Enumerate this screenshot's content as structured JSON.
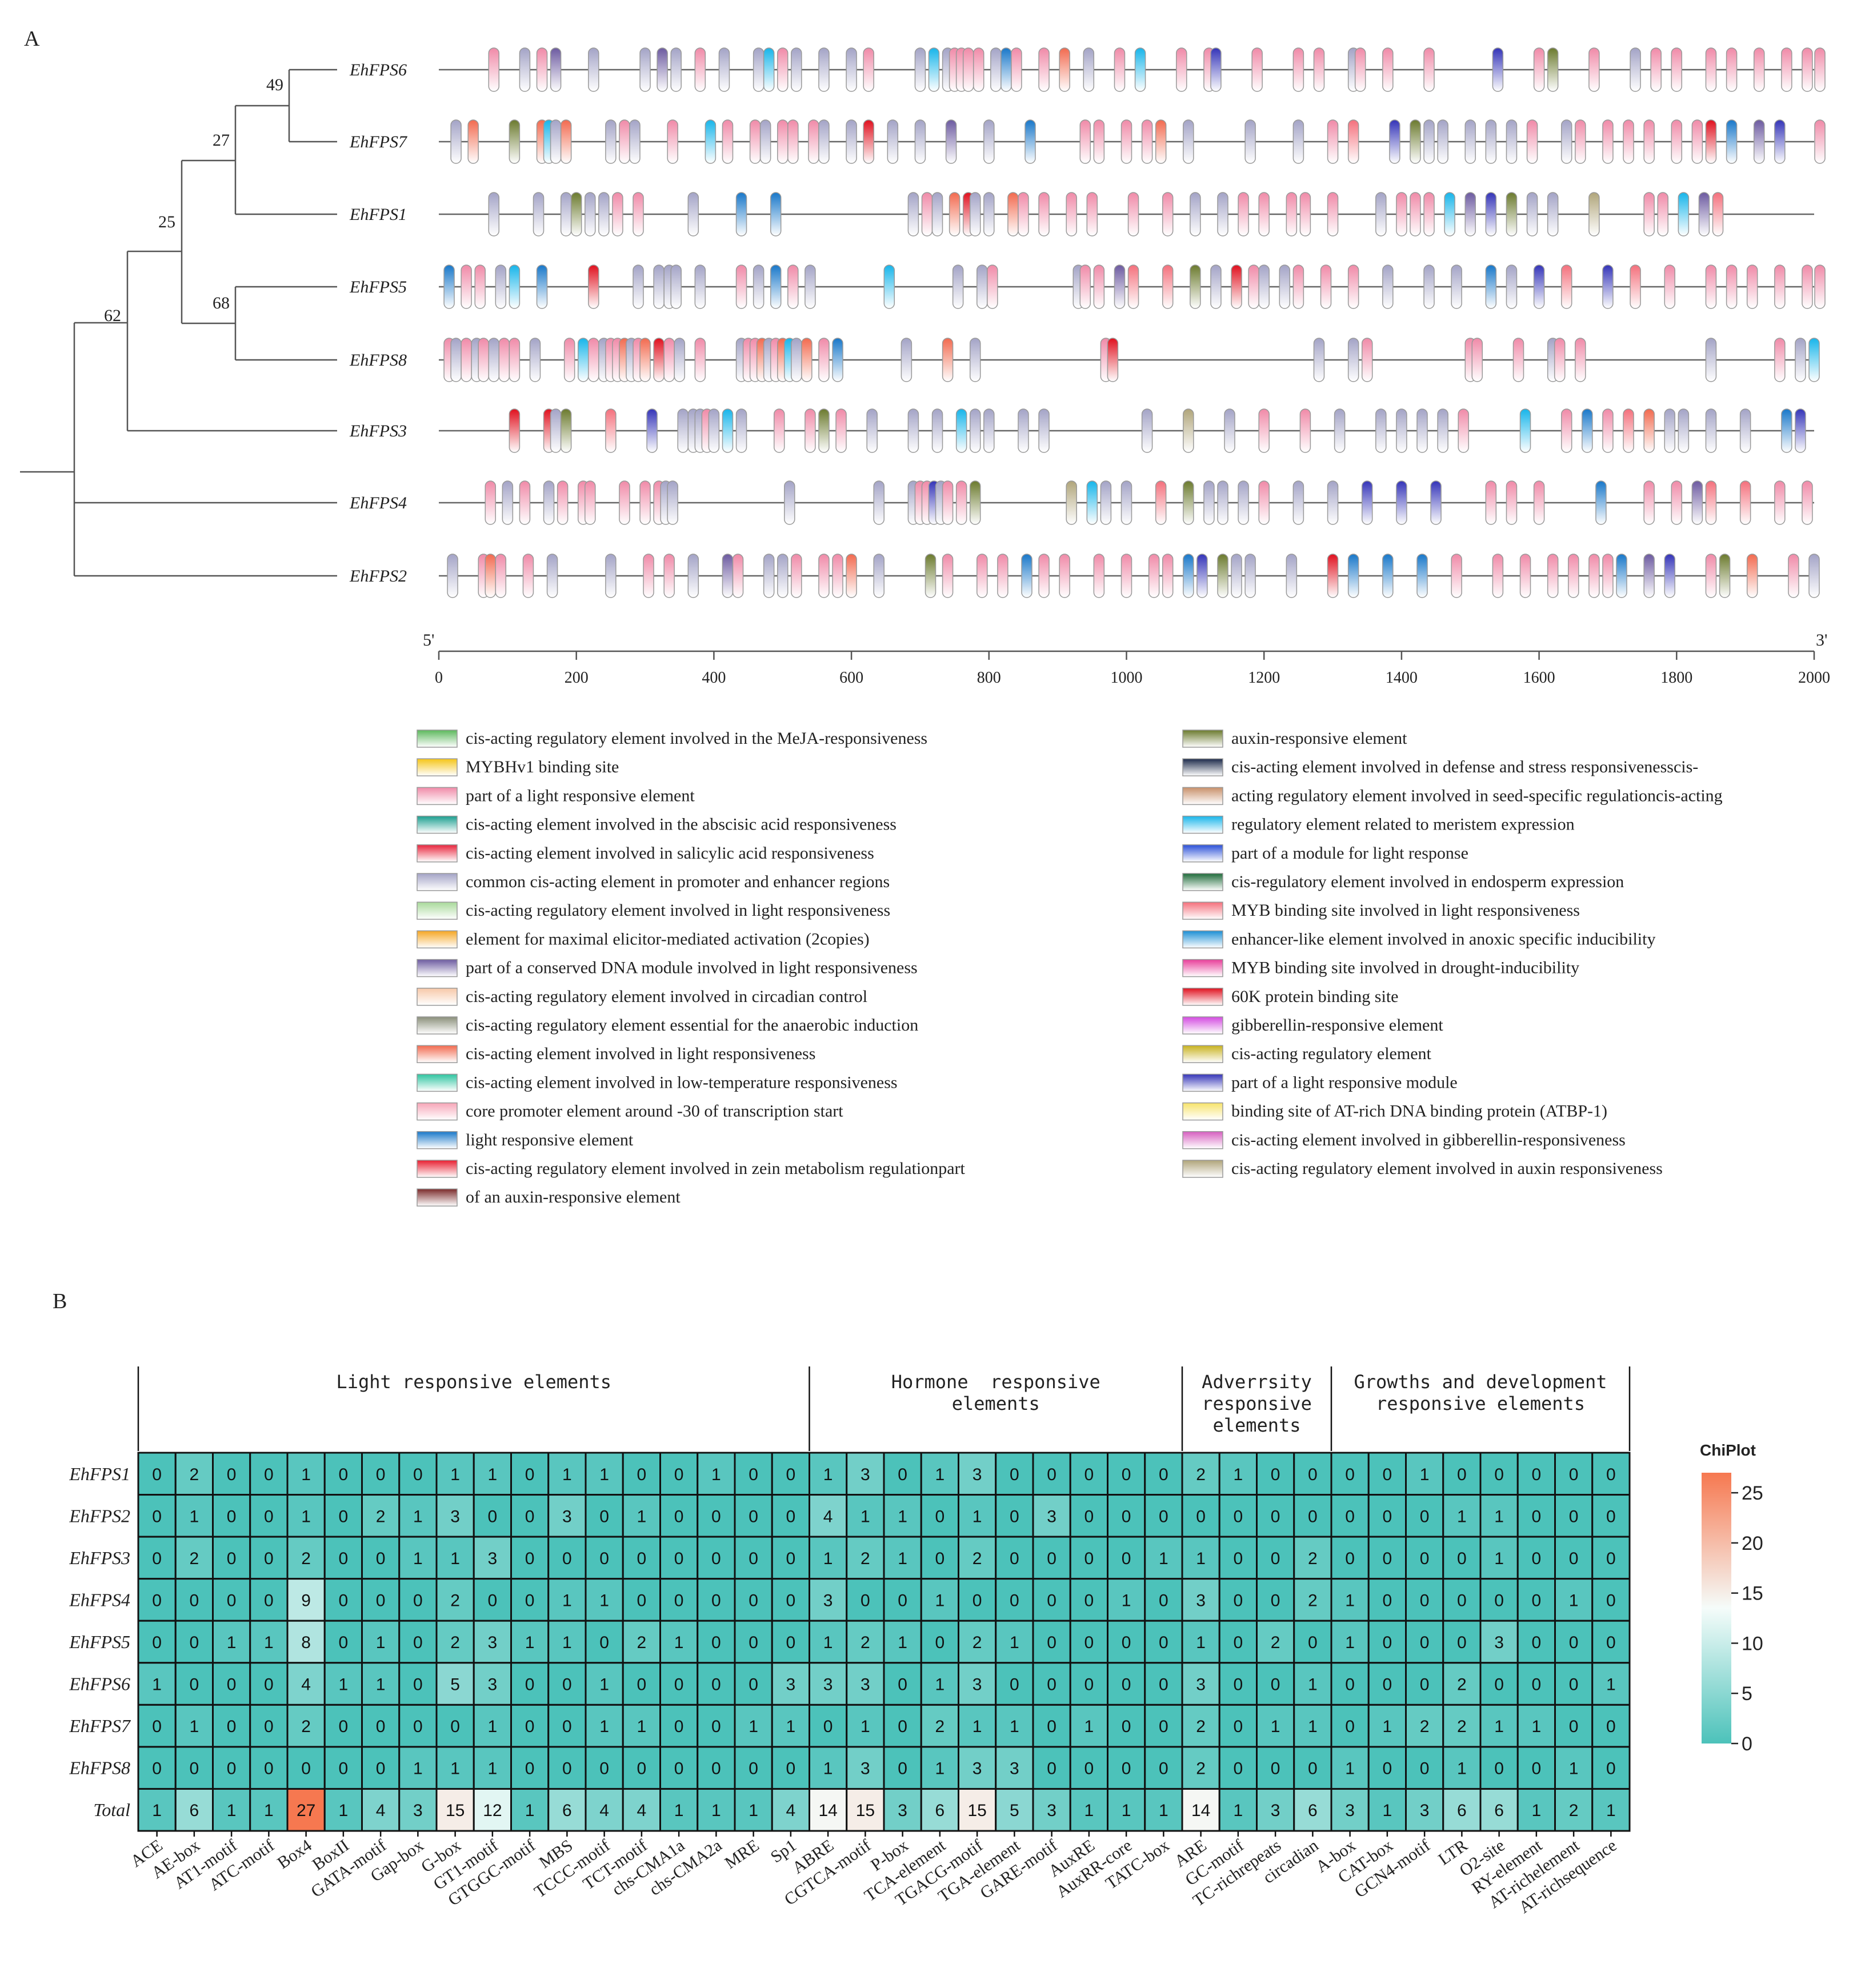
{
  "chart_data": [
    {
      "type": "other",
      "panel_label": "A",
      "description_kind": "phylogenetic tree with promoter cis-element tracks",
      "tree": {
        "genes": [
          "EhFPS6",
          "EhFPS7",
          "EhFPS1",
          "EhFPS5",
          "EhFPS8",
          "EhFPS3",
          "EhFPS4",
          "EhFPS2"
        ],
        "bootstrap": [
          "49",
          "27",
          "25",
          "68",
          "62"
        ]
      },
      "axis": {
        "start_label": "5'",
        "end_label": "3'",
        "min": 0,
        "max": 2000,
        "ticks": [
          "0",
          "200",
          "400",
          "600",
          "800",
          "1000",
          "1200",
          "1400",
          "1600",
          "1800",
          "2000"
        ]
      },
      "elements": [
        {
          "gene": "EhFPS6",
          "positions": [
            80,
            125,
            150,
            170,
            225,
            300,
            325,
            345,
            380,
            415,
            465,
            480,
            500,
            520,
            560,
            600,
            625,
            700,
            720,
            740,
            750,
            760,
            770,
            785,
            810,
            825,
            840,
            880,
            910,
            945,
            990,
            1020,
            1080,
            1120,
            1130,
            1190,
            1250,
            1280,
            1330,
            1340,
            1380,
            1440,
            1540,
            1600,
            1620,
            1680,
            1740,
            1770,
            1800,
            1850,
            1880,
            1920,
            1960,
            1990,
            2010
          ]
        },
        {
          "gene": "EhFPS7",
          "positions": [
            25,
            50,
            110,
            150,
            160,
            170,
            185,
            250,
            270,
            285,
            340,
            395,
            420,
            460,
            475,
            500,
            515,
            545,
            560,
            600,
            625,
            660,
            700,
            745,
            800,
            860,
            940,
            960,
            1000,
            1030,
            1050,
            1090,
            1180,
            1250,
            1300,
            1330,
            1390,
            1420,
            1440,
            1460,
            1500,
            1530,
            1560,
            1590,
            1640,
            1660,
            1700,
            1730,
            1760,
            1800,
            1830,
            1850,
            1880,
            1920,
            1950,
            2010
          ]
        },
        {
          "gene": "EhFPS1",
          "positions": [
            80,
            145,
            185,
            200,
            220,
            240,
            260,
            290,
            370,
            440,
            490,
            690,
            710,
            725,
            750,
            770,
            780,
            800,
            835,
            850,
            880,
            920,
            950,
            1010,
            1060,
            1100,
            1140,
            1170,
            1200,
            1240,
            1260,
            1300,
            1370,
            1400,
            1420,
            1440,
            1470,
            1500,
            1530,
            1560,
            1590,
            1620,
            1680,
            1760,
            1780,
            1810,
            1840,
            1860
          ]
        },
        {
          "gene": "EhFPS5",
          "positions": [
            15,
            40,
            60,
            90,
            110,
            150,
            225,
            290,
            320,
            335,
            345,
            380,
            440,
            465,
            490,
            515,
            540,
            655,
            755,
            790,
            805,
            930,
            940,
            960,
            990,
            1010,
            1060,
            1100,
            1130,
            1160,
            1185,
            1200,
            1230,
            1250,
            1290,
            1330,
            1380,
            1440,
            1480,
            1530,
            1560,
            1600,
            1640,
            1700,
            1740,
            1790,
            1850,
            1880,
            1910,
            1950,
            1990,
            2020
          ]
        },
        {
          "gene": "EhFPS8",
          "positions": [
            15,
            25,
            40,
            55,
            65,
            80,
            95,
            110,
            140,
            190,
            210,
            225,
            240,
            250,
            260,
            270,
            280,
            290,
            300,
            320,
            335,
            350,
            380,
            440,
            450,
            460,
            470,
            480,
            490,
            500,
            510,
            520,
            535,
            560,
            580,
            680,
            740,
            780,
            970,
            980,
            1280,
            1330,
            1350,
            1500,
            1510,
            1570,
            1620,
            1630,
            1660,
            1850,
            1950,
            1980,
            2000
          ]
        },
        {
          "gene": "EhFPS3",
          "positions": [
            110,
            160,
            170,
            185,
            250,
            310,
            355,
            370,
            380,
            390,
            400,
            420,
            440,
            495,
            540,
            560,
            585,
            630,
            690,
            725,
            760,
            780,
            800,
            850,
            880,
            1030,
            1090,
            1150,
            1200,
            1260,
            1310,
            1370,
            1400,
            1430,
            1460,
            1490,
            1580,
            1640,
            1670,
            1700,
            1730,
            1760,
            1790,
            1810,
            1850,
            1900,
            1960,
            1980
          ]
        },
        {
          "gene": "EhFPS4",
          "positions": [
            75,
            100,
            125,
            160,
            180,
            210,
            220,
            270,
            300,
            320,
            330,
            340,
            510,
            640,
            690,
            700,
            710,
            720,
            730,
            740,
            760,
            780,
            920,
            950,
            970,
            1000,
            1050,
            1090,
            1120,
            1140,
            1170,
            1200,
            1250,
            1300,
            1350,
            1400,
            1450,
            1530,
            1560,
            1600,
            1690,
            1760,
            1800,
            1830,
            1850,
            1900,
            1950,
            1990
          ]
        },
        {
          "gene": "EhFPS2",
          "positions": [
            20,
            65,
            75,
            90,
            130,
            165,
            250,
            305,
            335,
            370,
            420,
            435,
            480,
            500,
            520,
            560,
            580,
            600,
            640,
            715,
            740,
            790,
            820,
            855,
            880,
            910,
            960,
            1000,
            1040,
            1060,
            1090,
            1110,
            1140,
            1160,
            1180,
            1240,
            1300,
            1330,
            1380,
            1430,
            1480,
            1540,
            1580,
            1620,
            1650,
            1680,
            1700,
            1720,
            1760,
            1790,
            1850,
            1870,
            1910,
            1970,
            2000
          ]
        }
      ],
      "legend": {
        "left": [
          {
            "label": "cis-acting regulatory element involved in the MeJA-responsiveness",
            "color": "#5cb85c"
          },
          {
            "label": "MYBHv1 binding site",
            "color": "#f5c518"
          },
          {
            "label": "part of a light responsive element",
            "color": "#f08aa8"
          },
          {
            "label": "cis-acting element involved in the abscisic acid responsiveness",
            "color": "#1a9e8f"
          },
          {
            "label": "cis-acting element involved in salicylic acid responsiveness",
            "color": "#e8253c"
          },
          {
            "label": "common cis-acting element in promoter and enhancer regions",
            "color": "#a3a3c6"
          },
          {
            "label": "cis-acting regulatory element involved in light responsiveness",
            "color": "#a8d99a"
          },
          {
            "label": "element for maximal elicitor-mediated activation (2copies)",
            "color": "#f5a623"
          },
          {
            "label": "part of a conserved DNA module involved in light responsiveness",
            "color": "#6c5aa0"
          },
          {
            "label": "cis-acting regulatory element involved in circadian control",
            "color": "#f7c8a8"
          },
          {
            "label": "cis-acting regulatory element essential for the anaerobic induction",
            "color": "#8a8f7a"
          },
          {
            "label": "cis-acting element involved in light responsiveness",
            "color": "#f26a4f"
          },
          {
            "label": "cis-acting element involved in low-temperature responsiveness",
            "color": "#2ec4a0"
          },
          {
            "label": "core promoter element around -30 of transcription start",
            "color": "#f7a6b8"
          },
          {
            "label": "light responsive element",
            "color": "#1877c9"
          },
          {
            "label": "cis-acting regulatory element involved in zein metabolism regulationpart",
            "color": "#e81e30"
          },
          {
            "label": "of an auxin-responsive element",
            "color": "#7a2b2b"
          }
        ],
        "right": [
          {
            "label": "auxin-responsive element",
            "color": "#6b7a2e"
          },
          {
            "label": "cis-acting element involved in defense and stress responsivenesscis-",
            "color": "#1c2a4a"
          },
          {
            "label": "acting regulatory element involved in seed-specific regulationcis-acting",
            "color": "#c8906a"
          },
          {
            "label": "regulatory element related to meristem expression",
            "color": "#17b5ea"
          },
          {
            "label": "part of a module for light response",
            "color": "#2a4fd8"
          },
          {
            "label": "cis-regulatory element involved in endosperm expression",
            "color": "#1f6b3a"
          },
          {
            "label": "MYB binding site involved in light responsiveness",
            "color": "#f4707c"
          },
          {
            "label": "enhancer-like element involved in anoxic specific inducibility",
            "color": "#1b8fd4"
          },
          {
            "label": "MYB binding site involved in drought-inducibility",
            "color": "#e83e9a"
          },
          {
            "label": "60K protein binding site",
            "color": "#e0101e"
          },
          {
            "label": "gibberellin-responsive element",
            "color": "#d34ae0"
          },
          {
            "label": "cis-acting regulatory element",
            "color": "#c8b21e"
          },
          {
            "label": "part of a light responsive module",
            "color": "#3434b8"
          },
          {
            "label": "binding site of AT-rich DNA binding protein (ATBP-1)",
            "color": "#f7e36a"
          },
          {
            "label": "cis-acting element involved in gibberellin-responsiveness",
            "color": "#d65ec0"
          },
          {
            "label": "cis-acting regulatory element involved in auxin responsiveness",
            "color": "#b0a57a"
          }
        ]
      }
    },
    {
      "type": "heatmap",
      "panel_label": "B",
      "title": "ChiPlot",
      "groups": [
        {
          "label_lines": [
            "Light responsive elements"
          ],
          "span": 18
        },
        {
          "label_lines": [
            "Hormone  responsive",
            "elements"
          ],
          "span": 10
        },
        {
          "label_lines": [
            "Adverrsity",
            "responsive",
            "elements"
          ],
          "span": 4
        },
        {
          "label_lines": [
            "Growths and development",
            "responsive elements"
          ],
          "span": 8
        }
      ],
      "rows": [
        "EhFPS1",
        "EhFPS2",
        "EhFPS3",
        "EhFPS4",
        "EhFPS5",
        "EhFPS6",
        "EhFPS7",
        "EhFPS8",
        "Total"
      ],
      "columns": [
        "ACE",
        "AE-box",
        "AT1-motif",
        "ATC-motif",
        "Box4",
        "BoxII",
        "GATA-motif",
        "Gap-box",
        "G-box",
        "GT1-motif",
        "GTGGC-motif",
        "MBS",
        "TCCC-motif",
        "TCT-motif",
        "chs-CMA1a",
        "chs-CMA2a",
        "MRE",
        "Sp1",
        "ABRE",
        "CGTCA-motif",
        "P-box",
        "TCA-element",
        "TGACG-motif",
        "TGA-element",
        "GARE-motif",
        "AuxRE",
        "AuxRR-core",
        "TATC-box",
        "ARE",
        "GC-motif",
        "TC-richrepeats",
        "circadian",
        "A-box",
        "CAT-box",
        "GCN4-motif",
        "LTR",
        "O2-site",
        "RY-element",
        "AT-richelement",
        "AT-richsequence"
      ],
      "values": [
        [
          0,
          2,
          0,
          0,
          1,
          0,
          0,
          0,
          1,
          1,
          0,
          1,
          1,
          0,
          0,
          1,
          0,
          0,
          1,
          3,
          0,
          1,
          3,
          0,
          0,
          0,
          0,
          0,
          2,
          1,
          0,
          0,
          0,
          0,
          1,
          0,
          0,
          0,
          0,
          0
        ],
        [
          0,
          1,
          0,
          0,
          1,
          0,
          2,
          1,
          3,
          0,
          0,
          3,
          0,
          1,
          0,
          0,
          0,
          0,
          4,
          1,
          1,
          0,
          1,
          0,
          3,
          0,
          0,
          0,
          0,
          0,
          0,
          0,
          0,
          0,
          0,
          1,
          1,
          0,
          0,
          0
        ],
        [
          0,
          2,
          0,
          0,
          2,
          0,
          0,
          1,
          1,
          3,
          0,
          0,
          0,
          0,
          0,
          0,
          0,
          0,
          1,
          2,
          1,
          0,
          2,
          0,
          0,
          0,
          0,
          1,
          1,
          0,
          0,
          2,
          0,
          0,
          0,
          0,
          1,
          0,
          0,
          0
        ],
        [
          0,
          0,
          0,
          0,
          9,
          0,
          0,
          0,
          2,
          0,
          0,
          1,
          1,
          0,
          0,
          0,
          0,
          0,
          3,
          0,
          0,
          1,
          0,
          0,
          0,
          0,
          1,
          0,
          3,
          0,
          0,
          2,
          1,
          0,
          0,
          0,
          0,
          0,
          1,
          0
        ],
        [
          0,
          0,
          1,
          1,
          8,
          0,
          1,
          0,
          2,
          3,
          1,
          1,
          0,
          2,
          1,
          0,
          0,
          0,
          1,
          2,
          1,
          0,
          2,
          1,
          0,
          0,
          0,
          0,
          1,
          0,
          2,
          0,
          1,
          0,
          0,
          0,
          3,
          0,
          0,
          0
        ],
        [
          1,
          0,
          0,
          0,
          4,
          1,
          1,
          0,
          5,
          3,
          0,
          0,
          1,
          0,
          0,
          0,
          0,
          3,
          3,
          3,
          0,
          1,
          3,
          0,
          0,
          0,
          0,
          0,
          3,
          0,
          0,
          1,
          0,
          0,
          0,
          2,
          0,
          0,
          0,
          1
        ],
        [
          0,
          1,
          0,
          0,
          2,
          0,
          0,
          0,
          0,
          1,
          0,
          0,
          1,
          1,
          0,
          0,
          1,
          1,
          0,
          1,
          0,
          2,
          1,
          1,
          0,
          1,
          0,
          0,
          2,
          0,
          1,
          1,
          0,
          1,
          2,
          2,
          1,
          1,
          0,
          0
        ],
        [
          0,
          0,
          0,
          0,
          0,
          0,
          0,
          1,
          1,
          1,
          0,
          0,
          0,
          0,
          0,
          0,
          0,
          0,
          1,
          3,
          0,
          1,
          3,
          3,
          0,
          0,
          0,
          0,
          2,
          0,
          0,
          0,
          1,
          0,
          0,
          1,
          0,
          0,
          1,
          0
        ],
        [
          1,
          6,
          1,
          1,
          27,
          1,
          4,
          3,
          15,
          12,
          1,
          6,
          4,
          4,
          1,
          1,
          1,
          4,
          14,
          15,
          3,
          6,
          15,
          5,
          3,
          1,
          1,
          1,
          14,
          1,
          3,
          6,
          3,
          1,
          3,
          6,
          6,
          1,
          2,
          1
        ]
      ],
      "colorbar": {
        "min": 0,
        "max": 27,
        "ticks": [
          "0",
          "5",
          "10",
          "15",
          "20",
          "25"
        ]
      }
    }
  ]
}
